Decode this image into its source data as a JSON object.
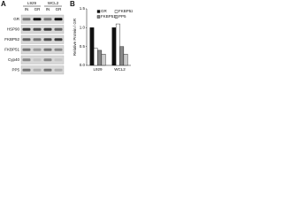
{
  "panel_a": {
    "letter": "A",
    "cell_lines": [
      "L929",
      "WCL2"
    ],
    "lanes": [
      "IN",
      "GR",
      "IN",
      "GR"
    ],
    "rows": [
      "GR",
      "HSP90",
      "FKBP52",
      "FKBP51",
      "Cyp40",
      "PP5"
    ]
  },
  "chart_data": {
    "type": "bar",
    "letter": "B",
    "y_label": "Relative Protein / GR",
    "categories": [
      "L929",
      "WCL2"
    ],
    "series": [
      {
        "name": "GR",
        "color": "#111111",
        "values": [
          1,
          1
        ]
      },
      {
        "name": "FKBP52",
        "color": "#ffffff",
        "values": [
          0.45,
          1.1
        ]
      },
      {
        "name": "FKBP51",
        "color": "#888888",
        "values": [
          0.4,
          0.5
        ]
      },
      {
        "name": "PP5",
        "color": "#cccccc",
        "values": [
          0.3,
          0.3
        ]
      }
    ],
    "ylim": [
      0,
      1.5
    ],
    "yticks": [
      {
        "value": 0,
        "label": "0.0"
      },
      {
        "value": 0.5,
        "label": "0.5"
      },
      {
        "value": 1,
        "label": "1.0"
      },
      {
        "value": 1.5,
        "label": "1.5"
      }
    ]
  }
}
